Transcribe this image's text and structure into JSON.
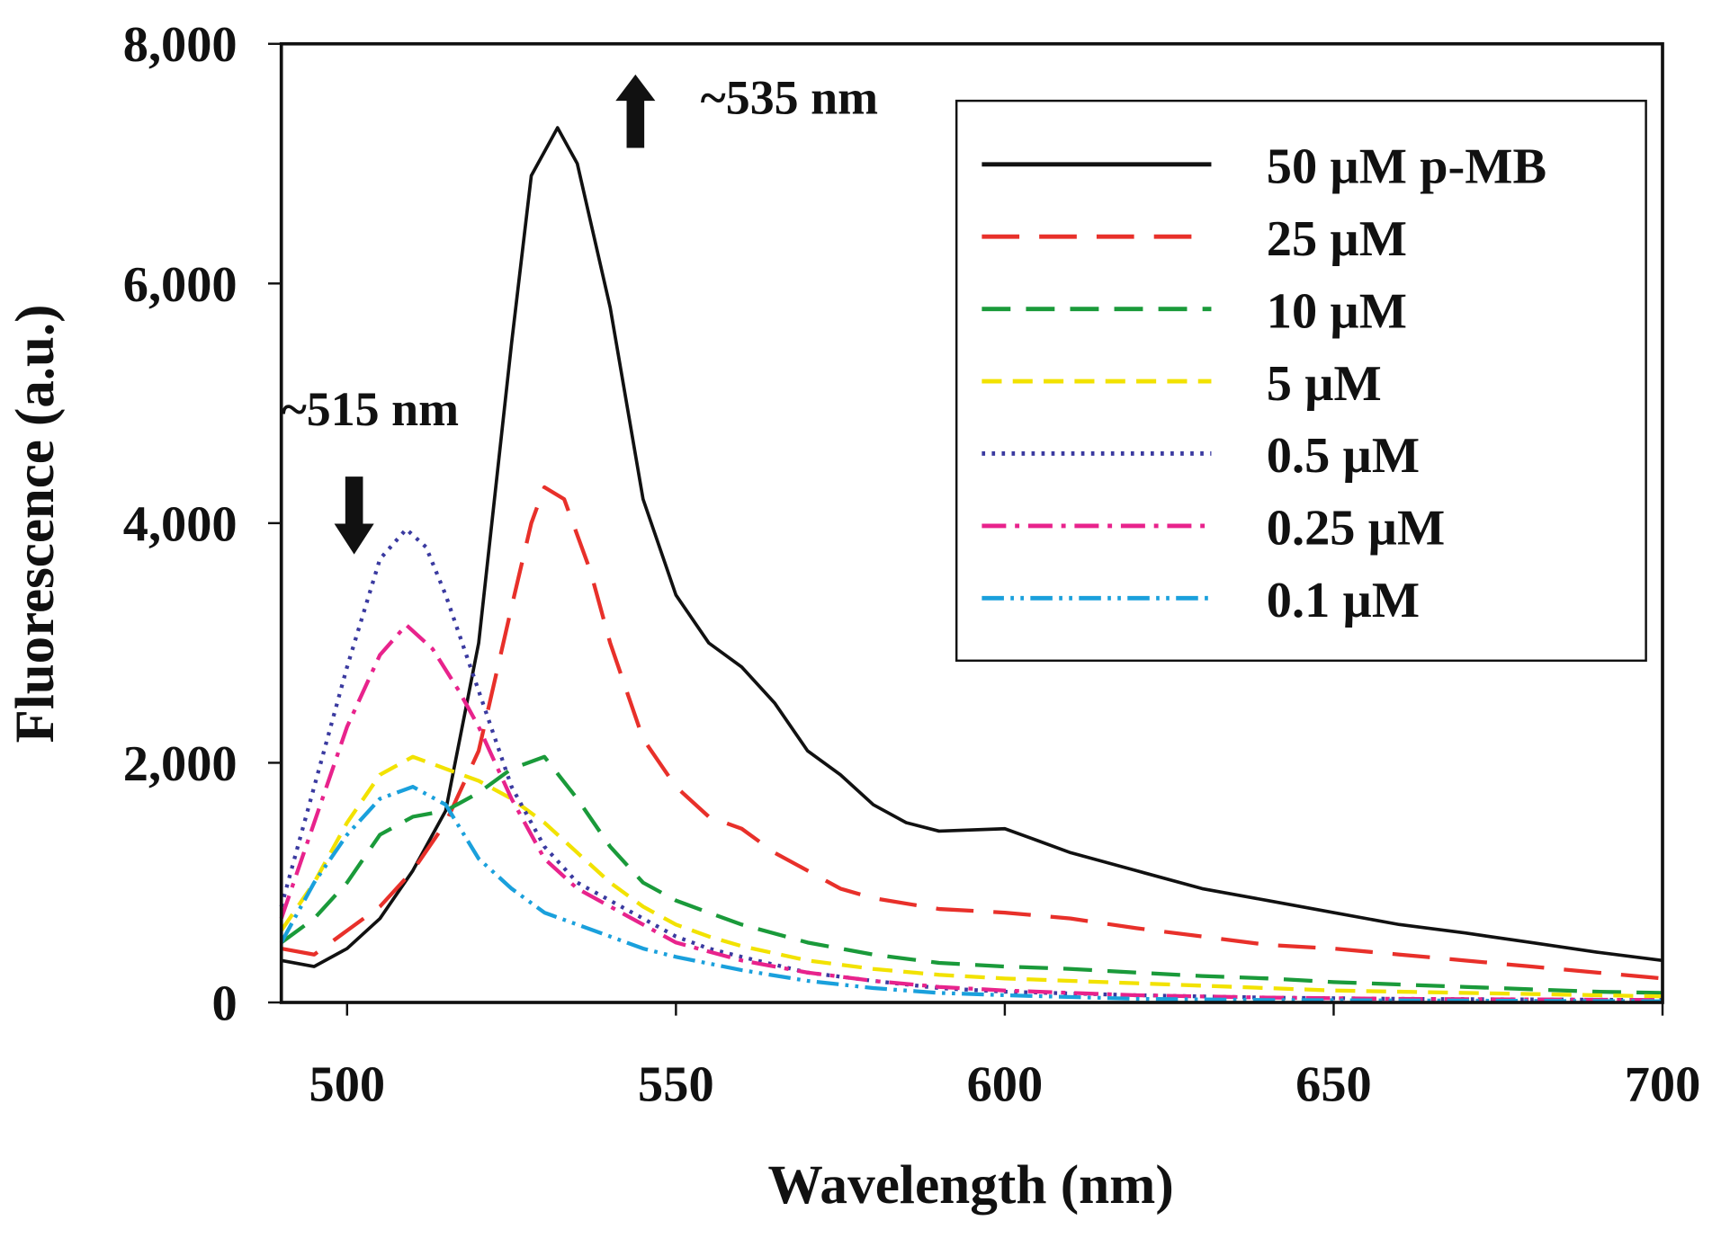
{
  "chart_data": {
    "type": "line",
    "title": "",
    "xlabel": "Wavelength (nm)",
    "ylabel": "Fluorescence (a.u.)",
    "xlim": [
      490,
      700
    ],
    "ylim": [
      0,
      8000
    ],
    "xticks": [
      500,
      550,
      600,
      650,
      700
    ],
    "xtick_labels": [
      "500",
      "550",
      "600",
      "650",
      "700"
    ],
    "yticks": [
      0,
      2000,
      4000,
      6000,
      8000
    ],
    "ytick_labels": [
      "0",
      "2,000",
      "4,000",
      "6,000",
      "8,000"
    ],
    "grid": false,
    "legend_position": "top-right",
    "annotations": [
      {
        "text": "~535 nm",
        "arrow": "up",
        "x": 544,
        "y": 7500
      },
      {
        "text": "~515 nm",
        "arrow": "down",
        "x": 501,
        "y": 3800
      }
    ],
    "series": [
      {
        "name": "50 µM p-MB",
        "color": "#111111",
        "dash": "",
        "x": [
          490,
          495,
          500,
          505,
          510,
          515,
          520,
          525,
          528,
          532,
          535,
          540,
          545,
          550,
          555,
          560,
          565,
          570,
          575,
          580,
          585,
          590,
          600,
          605,
          610,
          620,
          630,
          640,
          650,
          660,
          670,
          680,
          690,
          700
        ],
        "y": [
          350,
          300,
          450,
          700,
          1100,
          1600,
          3000,
          5500,
          6900,
          7300,
          7000,
          5800,
          4200,
          3400,
          3000,
          2800,
          2500,
          2100,
          1900,
          1650,
          1500,
          1430,
          1450,
          1350,
          1250,
          1100,
          950,
          850,
          750,
          650,
          580,
          500,
          420,
          350
        ]
      },
      {
        "name": "25 µM",
        "color": "#e8302a",
        "dash": "34,18",
        "x": [
          490,
          495,
          500,
          505,
          510,
          515,
          520,
          525,
          528,
          530,
          533,
          537,
          540,
          545,
          550,
          555,
          560,
          565,
          570,
          575,
          580,
          590,
          600,
          610,
          620,
          630,
          640,
          650,
          660,
          670,
          680,
          690,
          700
        ],
        "y": [
          450,
          400,
          600,
          800,
          1100,
          1500,
          2100,
          3300,
          4000,
          4300,
          4200,
          3600,
          3000,
          2200,
          1800,
          1550,
          1450,
          1250,
          1100,
          950,
          870,
          780,
          750,
          700,
          620,
          550,
          480,
          450,
          400,
          350,
          300,
          250,
          200
        ]
      },
      {
        "name": "10 µM",
        "color": "#1a9a3a",
        "dash": "26,14",
        "x": [
          490,
          495,
          500,
          505,
          510,
          515,
          520,
          525,
          530,
          535,
          540,
          545,
          550,
          555,
          560,
          570,
          580,
          590,
          600,
          610,
          620,
          630,
          640,
          650,
          660,
          670,
          680,
          690,
          700
        ],
        "y": [
          500,
          700,
          1000,
          1400,
          1550,
          1600,
          1750,
          1950,
          2050,
          1700,
          1300,
          1000,
          850,
          750,
          650,
          500,
          400,
          330,
          300,
          280,
          250,
          220,
          200,
          170,
          150,
          130,
          110,
          90,
          80
        ]
      },
      {
        "name": "5 µM",
        "color": "#f2e200",
        "dash": "18,10",
        "x": [
          490,
          495,
          500,
          505,
          510,
          515,
          520,
          525,
          530,
          535,
          540,
          545,
          550,
          555,
          560,
          570,
          580,
          590,
          600,
          610,
          620,
          630,
          640,
          650,
          660,
          670,
          680,
          690,
          700
        ],
        "y": [
          600,
          1000,
          1500,
          1900,
          2050,
          1950,
          1850,
          1700,
          1500,
          1250,
          1000,
          800,
          650,
          550,
          470,
          350,
          280,
          230,
          200,
          180,
          160,
          140,
          120,
          100,
          90,
          80,
          70,
          60,
          50
        ]
      },
      {
        "name": "0.5 µM",
        "color": "#3a3aa0",
        "dash": "3,6",
        "x": [
          490,
          495,
          500,
          505,
          509,
          512,
          515,
          520,
          525,
          530,
          535,
          540,
          545,
          550,
          555,
          560,
          570,
          580,
          590,
          600,
          620,
          640,
          660,
          700
        ],
        "y": [
          800,
          1800,
          2800,
          3700,
          3950,
          3800,
          3400,
          2600,
          1800,
          1300,
          1000,
          850,
          700,
          550,
          450,
          380,
          250,
          180,
          120,
          90,
          60,
          40,
          30,
          20
        ]
      },
      {
        "name": "0.25 µM",
        "color": "#e8238c",
        "dash": "22,8,4,8",
        "x": [
          490,
          495,
          500,
          505,
          509,
          513,
          517,
          520,
          525,
          530,
          535,
          540,
          545,
          550,
          560,
          570,
          580,
          590,
          600,
          620,
          640,
          660,
          700
        ],
        "y": [
          700,
          1500,
          2300,
          2900,
          3150,
          2950,
          2600,
          2300,
          1700,
          1200,
          950,
          800,
          650,
          500,
          350,
          250,
          180,
          130,
          100,
          60,
          40,
          30,
          20
        ]
      },
      {
        "name": "0.1 µM",
        "color": "#1aa0dc",
        "dash": "20,6,3,6,3,6",
        "x": [
          490,
          495,
          500,
          505,
          510,
          515,
          520,
          525,
          530,
          535,
          540,
          545,
          550,
          560,
          570,
          580,
          590,
          600,
          620,
          640,
          700
        ],
        "y": [
          500,
          1000,
          1400,
          1700,
          1800,
          1650,
          1200,
          950,
          750,
          650,
          550,
          450,
          380,
          270,
          180,
          120,
          80,
          60,
          30,
          20,
          10
        ]
      }
    ]
  }
}
